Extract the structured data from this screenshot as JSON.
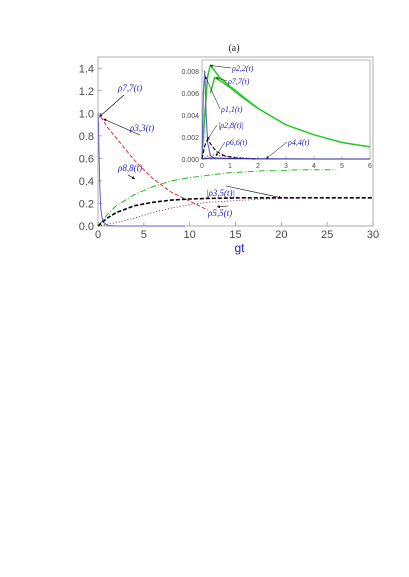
{
  "chart_data": {
    "panel_label": "(a)",
    "main": {
      "type": "line",
      "xlabel": "gt",
      "ylabel": "",
      "xlim": [
        0,
        30
      ],
      "ylim": [
        0,
        1.5
      ],
      "xticks": [
        "0",
        "5",
        "10",
        "15",
        "20",
        "25",
        "30"
      ],
      "yticks": [
        "0.0",
        "0.2",
        "0.4",
        "0.6",
        "0.8",
        "1.0",
        "1.2",
        "1.4"
      ],
      "series": [
        {
          "name": "ρ7,7(t)",
          "color": "#6a5acd",
          "style": "solid",
          "x": [
            0,
            0.05,
            0.1,
            0.2,
            0.3,
            0.5,
            1,
            2,
            5,
            9.5
          ],
          "y": [
            1.0,
            0.9,
            0.7,
            0.35,
            0.15,
            0.04,
            0.005,
            0,
            0,
            0
          ]
        },
        {
          "name": "ρ3,3(t)",
          "color": "#e03030",
          "style": "dashed",
          "x": [
            0.3,
            1,
            2,
            4,
            6,
            8,
            10,
            12
          ],
          "y": [
            0.97,
            0.88,
            0.78,
            0.58,
            0.42,
            0.3,
            0.22,
            0.14
          ]
        },
        {
          "name": "ρ8,8(t)",
          "color": "#22bb22",
          "style": "dashdot",
          "x": [
            0,
            1,
            2,
            4,
            6,
            8,
            10,
            12,
            14,
            16,
            18,
            20,
            22,
            24,
            26
          ],
          "y": [
            0,
            0.1,
            0.18,
            0.28,
            0.35,
            0.4,
            0.43,
            0.45,
            0.47,
            0.48,
            0.49,
            0.49,
            0.5,
            0.5,
            0.5
          ]
        },
        {
          "name": "|ρ3,5(t)|",
          "color": "#000000",
          "style": "dashed",
          "x": [
            0,
            1,
            2,
            4,
            6,
            8,
            10,
            12,
            14,
            16,
            18,
            20,
            24,
            30
          ],
          "y": [
            0,
            0.07,
            0.12,
            0.18,
            0.21,
            0.23,
            0.24,
            0.245,
            0.248,
            0.25,
            0.25,
            0.25,
            0.25,
            0.25
          ]
        },
        {
          "name": "ρ5,5(t)",
          "color": "#8b1a6b",
          "style": "dotted",
          "x": [
            0,
            2,
            4,
            6,
            8,
            10,
            12,
            14,
            16,
            18,
            20,
            24
          ],
          "y": [
            0,
            0.03,
            0.07,
            0.12,
            0.16,
            0.19,
            0.21,
            0.22,
            0.23,
            0.24,
            0.245,
            0.25
          ]
        }
      ],
      "annotations": [
        {
          "text": "ρ7,7(t)",
          "series": 0
        },
        {
          "text": "ρ3,3(t)",
          "series": 1
        },
        {
          "text": "ρ8,8(t)",
          "series": 2
        },
        {
          "text": "|ρ3,5(t)|",
          "series": 3
        },
        {
          "text": "ρ5,5(t)",
          "series": 4
        }
      ]
    },
    "inset": {
      "type": "line",
      "xlim": [
        0,
        6
      ],
      "ylim": [
        0,
        0.009
      ],
      "xticks": [
        "0",
        "1",
        "2",
        "3",
        "4",
        "5",
        "6"
      ],
      "yticks": [
        "0.000",
        "0.002",
        "0.004",
        "0.006",
        "0.008"
      ],
      "series": [
        {
          "name": "ρ2,2(t)",
          "color": "#22cc22",
          "style": "solid",
          "x": [
            0,
            0.1,
            0.2,
            0.3,
            0.4,
            0.6,
            1,
            2,
            3,
            4,
            5,
            6
          ],
          "y": [
            0,
            0.004,
            0.0075,
            0.0085,
            0.0082,
            0.0075,
            0.0066,
            0.0046,
            0.0031,
            0.0022,
            0.0015,
            0.0011
          ]
        },
        {
          "name": "ρ7,7(t)",
          "color": "#22cc22",
          "style": "solid",
          "x": [
            0.3,
            0.45,
            0.6,
            1,
            1.5,
            2
          ],
          "y": [
            0.006,
            0.0074,
            0.0072,
            0.0065,
            0.0055,
            0.0046
          ]
        },
        {
          "name": "ρ1,1(t)",
          "color": "#6a5acd",
          "style": "solid",
          "x": [
            0,
            0.05,
            0.1,
            0.15,
            0.2,
            0.3,
            0.5
          ],
          "y": [
            0,
            0.006,
            0.008,
            0.004,
            0.0015,
            0.0003,
            0
          ]
        },
        {
          "name": "|ρ2,8(t)|",
          "color": "#000000",
          "style": "dashed",
          "x": [
            0,
            0.1,
            0.2,
            0.3,
            0.5,
            0.8,
            1.2,
            2
          ],
          "y": [
            0,
            0.0012,
            0.0018,
            0.0014,
            0.0007,
            0.0003,
            0.0001,
            0
          ]
        },
        {
          "name": "ρ6,6(t)",
          "color": "#8b1a6b",
          "style": "dotted",
          "x": [
            0,
            0.3,
            0.6,
            1,
            1.5,
            2
          ],
          "y": [
            0,
            0.0004,
            0.0003,
            0.0002,
            0.0001,
            0
          ]
        },
        {
          "name": "ρ4,4(t)",
          "color": "#2a2aa0",
          "style": "solid",
          "x": [
            0,
            0.3,
            1,
            2,
            4,
            6
          ],
          "y": [
            0,
            0.0001,
            5e-05,
            2e-05,
            0,
            0
          ]
        }
      ],
      "annotations": [
        {
          "text": "ρ2,2(t)",
          "series": 0
        },
        {
          "text": "ρ7,7(t)",
          "series": 1
        },
        {
          "text": "ρ1,1(t)",
          "series": 2
        },
        {
          "text": "|ρ2,8(t)|",
          "series": 3
        },
        {
          "text": "ρ6,6(t)",
          "series": 4
        },
        {
          "text": "ρ4,4(t)",
          "series": 5
        }
      ]
    }
  }
}
